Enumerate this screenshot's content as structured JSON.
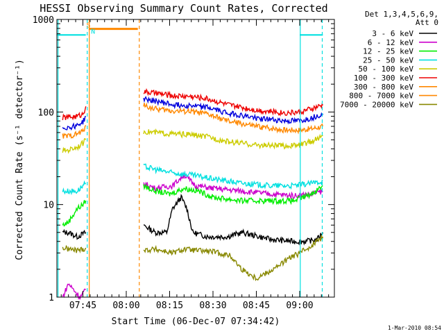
{
  "chart_data": {
    "type": "line",
    "title": "HESSI Observing Summary Count Rates, Corrected",
    "xlabel": "Start Time (06-Dec-07 07:34:42)",
    "ylabel": "Corrected Count Rate (s⁻¹ detector⁻¹)",
    "yscale": "log",
    "ylim": [
      1,
      1000
    ],
    "xlim_minutes": [
      36.0,
      102.0
    ],
    "x_ticks": [
      {
        "m": 45,
        "label": "07:45"
      },
      {
        "m": 60,
        "label": "08:00"
      },
      {
        "m": 75,
        "label": "08:15"
      },
      {
        "m": 90,
        "label": "08:30"
      },
      {
        "m": 105,
        "label": "08:45"
      },
      {
        "m": 120,
        "label": "09:00"
      }
    ],
    "y_ticks": [
      {
        "v": 1,
        "label": "1"
      },
      {
        "v": 10,
        "label": "10"
      },
      {
        "v": 100,
        "label": "100"
      },
      {
        "v": 1000,
        "label": "1000"
      }
    ],
    "legend_header": [
      "Det 1,3,4,5,6,9,",
      "Att 0"
    ],
    "legend_position": "right",
    "series": [
      {
        "name": "3 - 6 keV",
        "color": "#000000",
        "segments": [
          [
            [
              38,
              5
            ],
            [
              40,
              5
            ],
            [
              43,
              4.5
            ],
            [
              46,
              5
            ]
          ],
          [
            [
              66,
              6
            ],
            [
              70,
              5
            ],
            [
              74,
              5
            ],
            [
              76,
              9
            ],
            [
              79,
              12
            ],
            [
              81,
              9
            ],
            [
              83,
              5
            ],
            [
              88,
              4.5
            ],
            [
              95,
              4.5
            ],
            [
              100,
              5
            ],
            [
              110,
              4.2
            ],
            [
              118,
              4
            ],
            [
              122,
              4
            ],
            [
              126,
              4.2
            ],
            [
              128,
              5
            ]
          ]
        ]
      },
      {
        "name": "6 - 12 keV",
        "color": "#cc00cc",
        "segments": [
          [
            [
              38,
              1
            ],
            [
              40,
              1.4
            ],
            [
              44,
              1
            ],
            [
              46,
              1.2
            ]
          ],
          [
            [
              66,
              17
            ],
            [
              70,
              15
            ],
            [
              76,
              16
            ],
            [
              80,
              21
            ],
            [
              84,
              16
            ],
            [
              90,
              15
            ],
            [
              100,
              14
            ],
            [
              110,
              13
            ],
            [
              118,
              12.5
            ],
            [
              124,
              13
            ],
            [
              128,
              14
            ]
          ]
        ]
      },
      {
        "name": "12 - 25 keV",
        "color": "#00ee00",
        "segments": [
          [
            [
              38,
              6
            ],
            [
              40,
              6.5
            ],
            [
              43,
              9
            ],
            [
              45,
              10
            ],
            [
              46,
              11
            ]
          ],
          [
            [
              66,
              16
            ],
            [
              70,
              14
            ],
            [
              75,
              13
            ],
            [
              80,
              15
            ],
            [
              85,
              14
            ],
            [
              90,
              12
            ],
            [
              100,
              11
            ],
            [
              110,
              11
            ],
            [
              118,
              11
            ],
            [
              124,
              13
            ],
            [
              128,
              16
            ]
          ]
        ]
      },
      {
        "name": "25 - 50 keV",
        "color": "#00e0e0",
        "segments": [
          [
            [
              38,
              14
            ],
            [
              40,
              14
            ],
            [
              43,
              14
            ],
            [
              45,
              16
            ],
            [
              46,
              17
            ]
          ],
          [
            [
              66,
              26
            ],
            [
              70,
              24
            ],
            [
              76,
              22
            ],
            [
              82,
              21
            ],
            [
              90,
              19
            ],
            [
              100,
              17
            ],
            [
              110,
              16
            ],
            [
              118,
              16
            ],
            [
              124,
              17
            ],
            [
              128,
              18
            ]
          ]
        ]
      },
      {
        "name": "50 - 100 keV",
        "color": "#cccc00",
        "segments": [
          [
            [
              38,
              38
            ],
            [
              40,
              39
            ],
            [
              43,
              42
            ],
            [
              45,
              46
            ],
            [
              46,
              50
            ]
          ],
          [
            [
              66,
              62
            ],
            [
              70,
              60
            ],
            [
              76,
              58
            ],
            [
              82,
              57
            ],
            [
              88,
              54
            ],
            [
              95,
              48
            ],
            [
              105,
              44
            ],
            [
              115,
              43
            ],
            [
              120,
              44
            ],
            [
              124,
              48
            ],
            [
              128,
              55
            ]
          ]
        ]
      },
      {
        "name": "100 - 300 keV",
        "color": "#ee0000",
        "segments": [
          [
            [
              38,
              87
            ],
            [
              40,
              88
            ],
            [
              43,
              90
            ],
            [
              45,
              95
            ],
            [
              46,
              115
            ]
          ],
          [
            [
              66,
              165
            ],
            [
              70,
              160
            ],
            [
              76,
              150
            ],
            [
              82,
              148
            ],
            [
              88,
              140
            ],
            [
              95,
              120
            ],
            [
              105,
              105
            ],
            [
              115,
              98
            ],
            [
              120,
              100
            ],
            [
              124,
              108
            ],
            [
              128,
              118
            ]
          ]
        ]
      },
      {
        "name": "300 - 800 keV",
        "color": "#ff8800",
        "segments": [
          [
            [
              38,
              55
            ],
            [
              40,
              55
            ],
            [
              43,
              58
            ],
            [
              45,
              62
            ],
            [
              46,
              72
            ]
          ],
          [
            [
              66,
              118
            ],
            [
              70,
              108
            ],
            [
              76,
              103
            ],
            [
              82,
              102
            ],
            [
              88,
              95
            ],
            [
              95,
              80
            ],
            [
              105,
              70
            ],
            [
              115,
              64
            ],
            [
              120,
              64
            ],
            [
              124,
              66
            ],
            [
              128,
              70
            ]
          ]
        ]
      },
      {
        "name": "800 - 7000 keV",
        "color": "#ff8800",
        "segments": []
      },
      {
        "name": "7000 - 20000 keV",
        "color": "#888800",
        "segments": [
          [
            [
              38,
              3.4
            ],
            [
              40,
              3.3
            ],
            [
              43,
              3.2
            ],
            [
              45,
              3.3
            ],
            [
              46,
              3.4
            ]
          ],
          [
            [
              66,
              3.2
            ],
            [
              70,
              3.3
            ],
            [
              76,
              3.0
            ],
            [
              80,
              3.3
            ],
            [
              84,
              3.2
            ],
            [
              90,
              3.1
            ],
            [
              96,
              2.8
            ],
            [
              100,
              2.0
            ],
            [
              105,
              1.6
            ],
            [
              112,
              2.1
            ],
            [
              116,
              2.6
            ],
            [
              120,
              3.0
            ],
            [
              124,
              3.6
            ],
            [
              128,
              4.5
            ]
          ]
        ]
      },
      {
        "name": "blue series",
        "color": "#0000dd",
        "segments": [
          [
            [
              38,
              68
            ],
            [
              40,
              68
            ],
            [
              43,
              72
            ],
            [
              45,
              78
            ],
            [
              46,
              90
            ]
          ],
          [
            [
              66,
              138
            ],
            [
              70,
              132
            ],
            [
              76,
              120
            ],
            [
              82,
              118
            ],
            [
              88,
              112
            ],
            [
              95,
              98
            ],
            [
              105,
              86
            ],
            [
              115,
              80
            ],
            [
              120,
              80
            ],
            [
              124,
              86
            ],
            [
              128,
              96
            ]
          ]
        ]
      }
    ],
    "markers": [
      {
        "kind": "cyan-level",
        "color": "#00e0e0",
        "x": [
          36,
          46
        ],
        "y": 680
      },
      {
        "kind": "cyan-level",
        "color": "#00e0e0",
        "x": [
          120,
          128
        ],
        "y": 680
      },
      {
        "kind": "orange-level",
        "color": "#ff8800",
        "x": [
          47,
          64
        ],
        "y": 790
      },
      {
        "kind": "label",
        "text": "S",
        "color": "#ff8800",
        "x": 46.2,
        "y": 820
      },
      {
        "kind": "label",
        "text": "N",
        "color": "#00e0e0",
        "x": 47.8,
        "y": 700
      }
    ],
    "vlines": [
      {
        "x": 36.4,
        "color": "#00e0e0",
        "dashed": false
      },
      {
        "x": 46.5,
        "color": "#00e0e0",
        "dashed": true
      },
      {
        "x": 47.2,
        "color": "#ff8800",
        "dashed": false
      },
      {
        "x": 64.5,
        "color": "#ff8800",
        "dashed": true
      },
      {
        "x": 120.2,
        "color": "#00e0e0",
        "dashed": false
      },
      {
        "x": 127.8,
        "color": "#00e0e0",
        "dashed": true
      }
    ]
  },
  "footer_text": "1-Mar-2010 08:54"
}
